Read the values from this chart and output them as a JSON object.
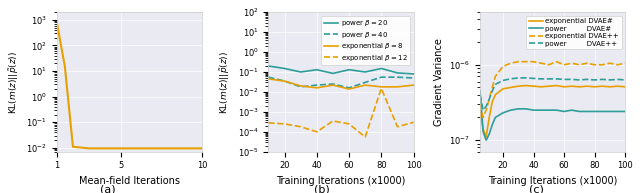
{
  "fig_width": 6.4,
  "fig_height": 1.93,
  "dpi": 100,
  "panel_a": {
    "x": [
      1,
      1.5,
      2,
      3,
      4,
      5,
      6,
      7,
      8,
      9,
      10
    ],
    "y": [
      800,
      15,
      0.011,
      0.0095,
      0.0095,
      0.0095,
      0.0095,
      0.0095,
      0.0095,
      0.0095,
      0.0095
    ],
    "color": "#E8A000",
    "linewidth": 1.5,
    "xlabel": "Mean-field Iterations",
    "ylabel": "KL$(m(z)||\\tilde{p}(z))$",
    "ylim_min": 0.007,
    "ylim_max": 2000,
    "xlim_min": 1,
    "xlim_max": 10,
    "xticks": [
      1,
      5,
      10
    ],
    "label_a": "(a)"
  },
  "panel_b": {
    "x": [
      10,
      20,
      30,
      40,
      50,
      60,
      70,
      80,
      90,
      100
    ],
    "power_20_y": [
      0.2,
      0.15,
      0.1,
      0.13,
      0.085,
      0.13,
      0.1,
      0.15,
      0.09,
      0.08
    ],
    "power_40_y": [
      0.055,
      0.035,
      0.018,
      0.022,
      0.025,
      0.016,
      0.03,
      0.055,
      0.055,
      0.05
    ],
    "exp_8_y": [
      0.045,
      0.035,
      0.02,
      0.016,
      0.022,
      0.014,
      0.022,
      0.018,
      0.018,
      0.022
    ],
    "exp_12_y": [
      0.00028,
      0.00025,
      0.00018,
      0.0001,
      0.00035,
      0.00025,
      5.5e-05,
      0.015,
      0.00018,
      0.0003
    ],
    "color_teal": "#2d9e99",
    "color_orange": "#E8A000",
    "xlabel": "Training Iterations (x1000)",
    "ylabel": "KL$(m(z)||\\tilde{p}(z))$",
    "ylim_min": 1e-05,
    "ylim_max": 100,
    "xlim_min": 10,
    "xlim_max": 100,
    "xticks": [
      20,
      40,
      60,
      80,
      100
    ],
    "label_b": "(b)"
  },
  "panel_c": {
    "x": [
      5,
      7,
      9,
      11,
      13,
      15,
      20,
      25,
      30,
      35,
      40,
      45,
      50,
      55,
      60,
      65,
      70,
      75,
      80,
      85,
      90,
      95,
      100
    ],
    "exp_dvae_hash_y": [
      2.5e-07,
      1.4e-07,
      1.1e-07,
      2e-07,
      3.2e-07,
      4e-07,
      4.8e-07,
      5e-07,
      5.2e-07,
      5.3e-07,
      5.2e-07,
      5.1e-07,
      5.2e-07,
      5.3e-07,
      5.1e-07,
      5.2e-07,
      5.1e-07,
      5.2e-07,
      5.1e-07,
      5.2e-07,
      5.1e-07,
      5.2e-07,
      5.1e-07
    ],
    "power_dvae_hash_y": [
      4.5e-07,
      1.3e-07,
      1e-07,
      1.2e-07,
      1.6e-07,
      2e-07,
      2.3e-07,
      2.5e-07,
      2.6e-07,
      2.6e-07,
      2.5e-07,
      2.5e-07,
      2.5e-07,
      2.5e-07,
      2.4e-07,
      2.5e-07,
      2.4e-07,
      2.4e-07,
      2.4e-07,
      2.4e-07,
      2.4e-07,
      2.4e-07,
      2.4e-07
    ],
    "exp_dvaepp_y": [
      3e-07,
      2e-07,
      2.5e-07,
      3.5e-07,
      5e-07,
      7e-07,
      9.5e-07,
      1.05e-06,
      1.1e-06,
      1.1e-06,
      1.1e-06,
      1.05e-06,
      1e-06,
      1.1e-06,
      1e-06,
      1.05e-06,
      1e-06,
      1.05e-06,
      1e-06,
      1e-06,
      1.05e-06,
      1e-06,
      1.05e-06
    ],
    "power_dvaepp_y": [
      4e-07,
      2.5e-07,
      2.8e-07,
      3.5e-07,
      4.5e-07,
      5.5e-07,
      6.2e-07,
      6.5e-07,
      6.7e-07,
      6.7e-07,
      6.6e-07,
      6.5e-07,
      6.5e-07,
      6.5e-07,
      6.4e-07,
      6.4e-07,
      6.3e-07,
      6.4e-07,
      6.3e-07,
      6.4e-07,
      6.3e-07,
      6.4e-07,
      6.3e-07
    ],
    "color_teal": "#2d9e99",
    "color_orange": "#E8A000",
    "xlabel": "Training Iterations (x1000)",
    "ylabel": "Gradient Variance",
    "ylim_min": 7e-08,
    "ylim_max": 5e-06,
    "xlim_min": 5,
    "xlim_max": 100,
    "xticks": [
      20,
      40,
      60,
      80,
      100
    ],
    "label_c": "(c)"
  },
  "bg_color": "#eaeaf2"
}
